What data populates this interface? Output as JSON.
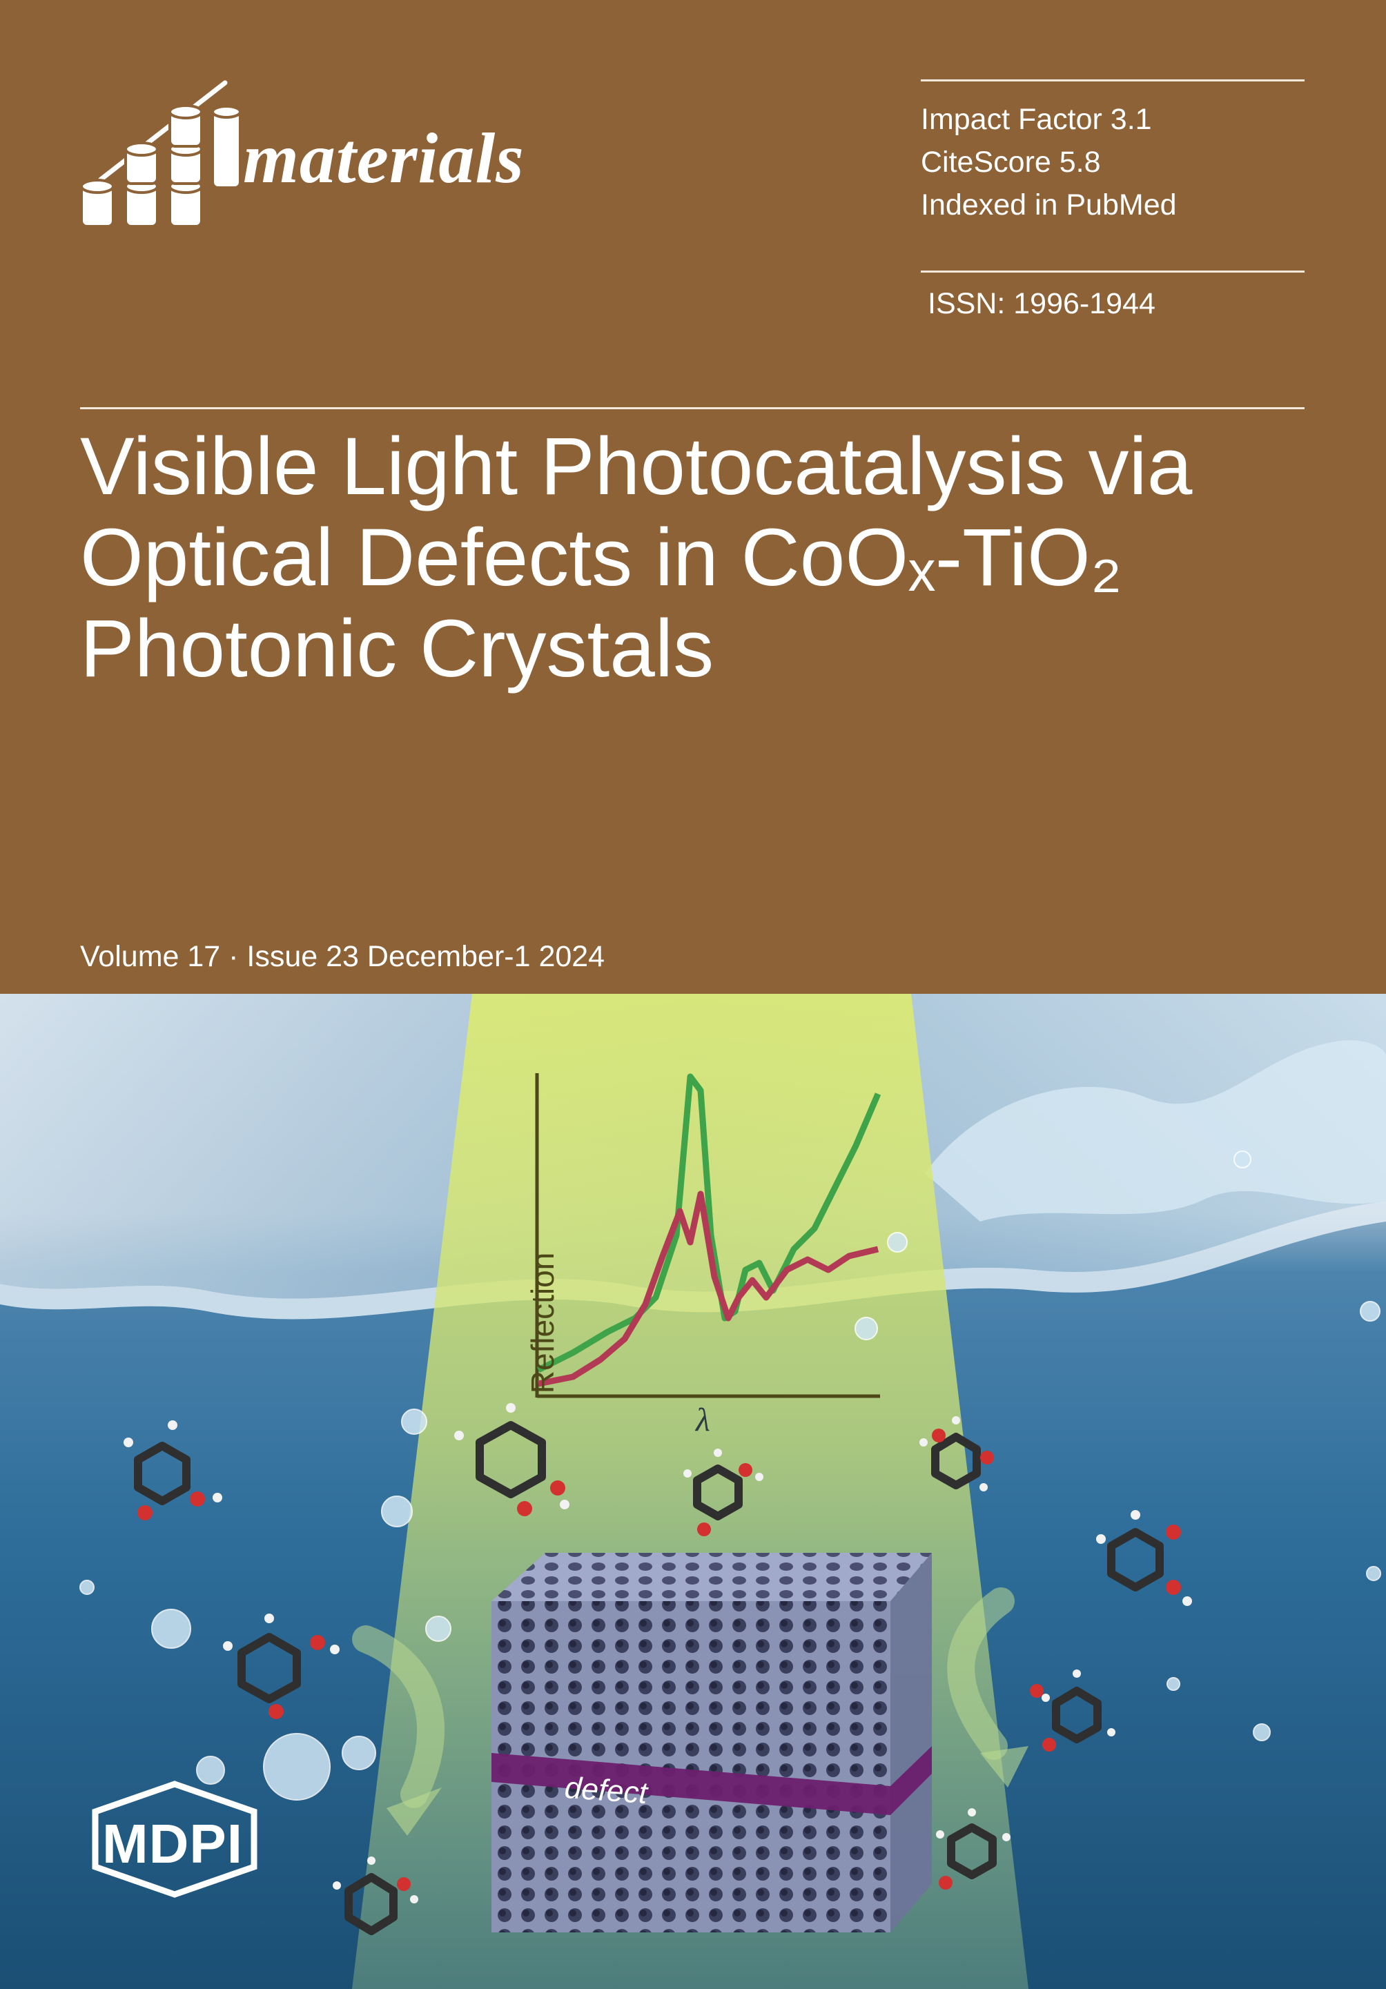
{
  "journal": {
    "name": "materials",
    "metrics": [
      "Impact Factor 3.1",
      "CiteScore 5.8",
      "Indexed in PubMed"
    ],
    "issn": "ISSN: 1996-1944"
  },
  "article": {
    "title_lines": [
      "Visible Light Photocatalysis via",
      "Optical Defects in CoOₓ-TiO₂",
      "Photonic Crystals"
    ]
  },
  "issue": {
    "volume_line": "Volume 17 · Issue 23 December-1 2024"
  },
  "cover_figure": {
    "y_axis_label": "Reflection",
    "x_axis_label": "λ",
    "defect_label": "defect"
  },
  "publisher": {
    "name": "MDPI"
  },
  "colors": {
    "band": "#8d6237",
    "light_beam": "#d7e86b",
    "curve_green": "#3fa34a",
    "curve_red": "#b23a55",
    "defect_layer": "#6c1f6e",
    "crystal": "#7d86a8"
  }
}
